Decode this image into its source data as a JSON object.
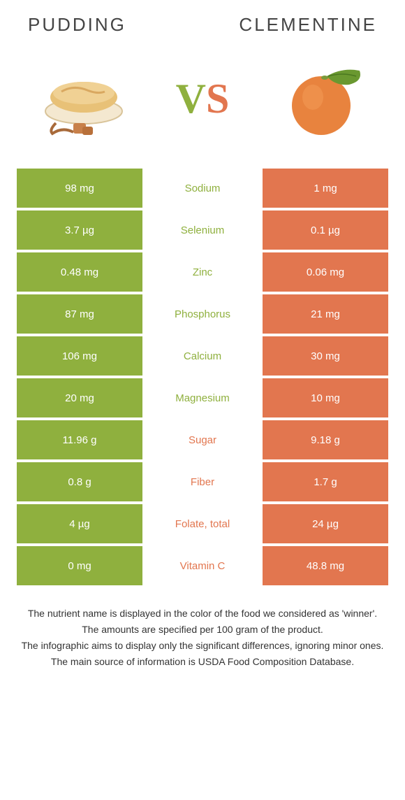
{
  "header": {
    "left": "PUDDING",
    "right": "CLEMENTINE"
  },
  "vs": {
    "v": "V",
    "s": "S"
  },
  "colors": {
    "left": "#8fb03e",
    "right": "#e2764f"
  },
  "rows": [
    {
      "left": "98 mg",
      "label": "Sodium",
      "right": "1 mg",
      "winner": "left"
    },
    {
      "left": "3.7 µg",
      "label": "Selenium",
      "right": "0.1 µg",
      "winner": "left"
    },
    {
      "left": "0.48 mg",
      "label": "Zinc",
      "right": "0.06 mg",
      "winner": "left"
    },
    {
      "left": "87 mg",
      "label": "Phosphorus",
      "right": "21 mg",
      "winner": "left"
    },
    {
      "left": "106 mg",
      "label": "Calcium",
      "right": "30 mg",
      "winner": "left"
    },
    {
      "left": "20 mg",
      "label": "Magnesium",
      "right": "10 mg",
      "winner": "left"
    },
    {
      "left": "11.96 g",
      "label": "Sugar",
      "right": "9.18 g",
      "winner": "right"
    },
    {
      "left": "0.8 g",
      "label": "Fiber",
      "right": "1.7 g",
      "winner": "right"
    },
    {
      "left": "4 µg",
      "label": "Folate, total",
      "right": "24 µg",
      "winner": "right"
    },
    {
      "left": "0 mg",
      "label": "Vitamin C",
      "right": "48.8 mg",
      "winner": "right"
    }
  ],
  "footer": {
    "line1": "The nutrient name is displayed in the color of the food we considered as 'winner'.",
    "line2": "The amounts are specified per 100 gram of the product.",
    "line3": "The infographic aims to display only the significant differences, ignoring minor ones.",
    "line4": "The main source of information is USDA Food Composition Database."
  }
}
